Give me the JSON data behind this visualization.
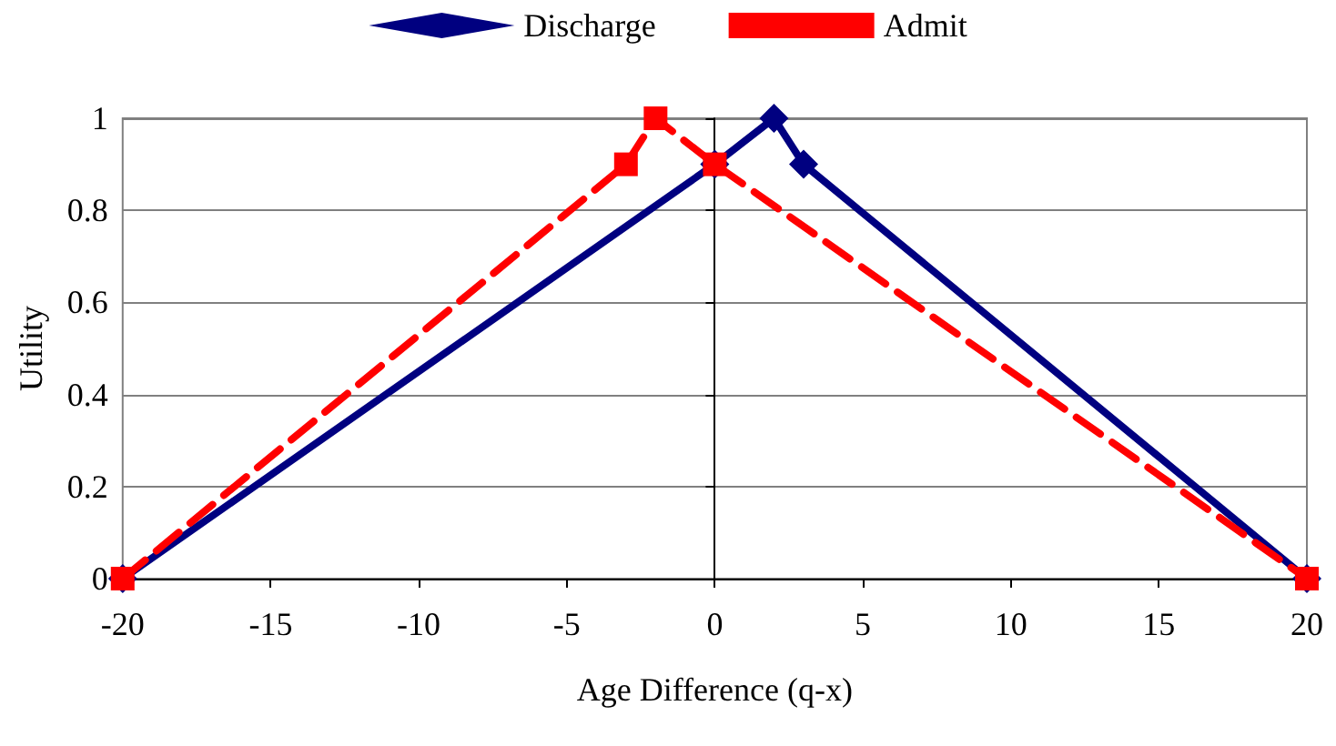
{
  "chart_data": {
    "type": "line",
    "xlabel": "Age Difference (q-x)",
    "ylabel": "Utility",
    "xlim": [
      -20,
      20
    ],
    "xticks": [
      -20,
      -15,
      -10,
      -5,
      0,
      5,
      10,
      15,
      20
    ],
    "ylim": [
      0,
      1
    ],
    "yticks": [
      0,
      0.2,
      0.4,
      0.6,
      0.8,
      1
    ],
    "grid": "y",
    "legend": "top",
    "series": [
      {
        "name": "Discharge",
        "color": "#000080",
        "marker": "diamond",
        "line_style": "solid",
        "x": [
          -20,
          0,
          2,
          3,
          20
        ],
        "values": [
          0,
          0.9,
          1,
          0.9,
          0
        ]
      },
      {
        "name": "Admit",
        "color": "#ff0000",
        "marker": "square",
        "line_style": "dashed",
        "x": [
          -20,
          -3,
          -2,
          0,
          20
        ],
        "values": [
          0,
          0.9,
          1,
          0.9,
          0
        ]
      }
    ]
  }
}
